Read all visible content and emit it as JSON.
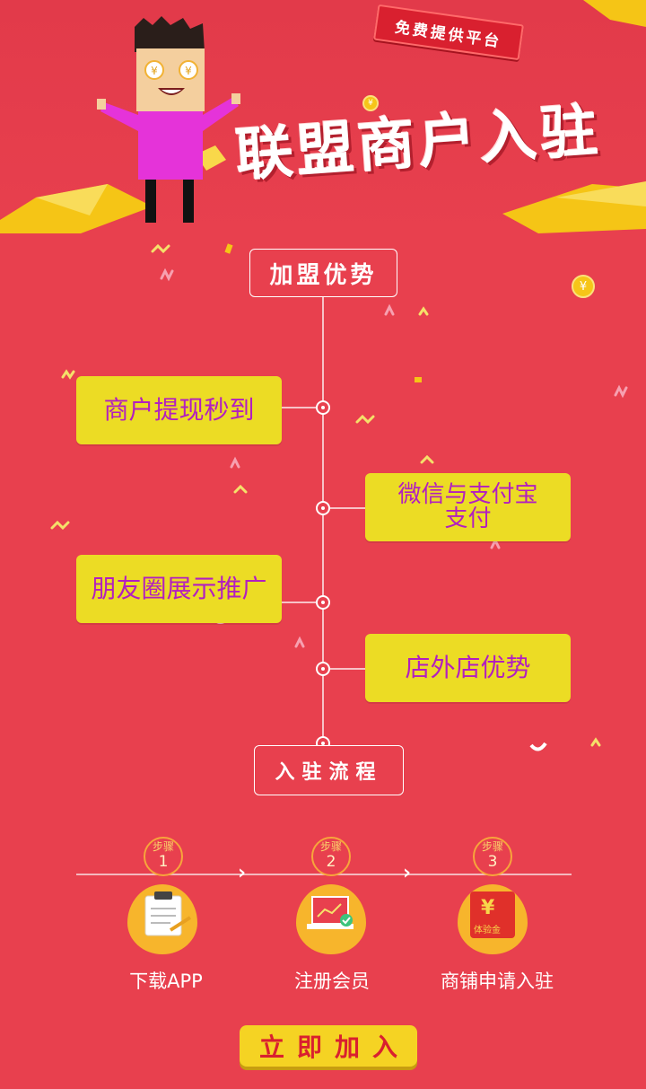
{
  "hero": {
    "badge": "免费提供平台",
    "title": "联盟商户入驻"
  },
  "advantages": {
    "header": "加盟优势",
    "items": [
      {
        "label": "商户提现秒到"
      },
      {
        "label": "微信与支付宝支付"
      },
      {
        "label": "朋友圈展示推广"
      },
      {
        "label": "店外店优势"
      }
    ]
  },
  "process": {
    "header": "入驻流程",
    "steps": [
      {
        "tag": "步骤",
        "num": "1",
        "label": "下载APP",
        "icon": "clipboard-icon"
      },
      {
        "tag": "步骤",
        "num": "2",
        "label": "注册会员",
        "icon": "laptop-icon"
      },
      {
        "tag": "步骤",
        "num": "3",
        "label": "商铺申请入驻",
        "icon": "red-envelope-icon",
        "icon_text": "体验金",
        "currency": "¥"
      }
    ]
  },
  "cta": {
    "label": "立即加入"
  },
  "colors": {
    "background": "#e8404e",
    "card": "#ecdc24",
    "card_text": "#b21fc0",
    "accent_yellow": "#f5d323"
  }
}
